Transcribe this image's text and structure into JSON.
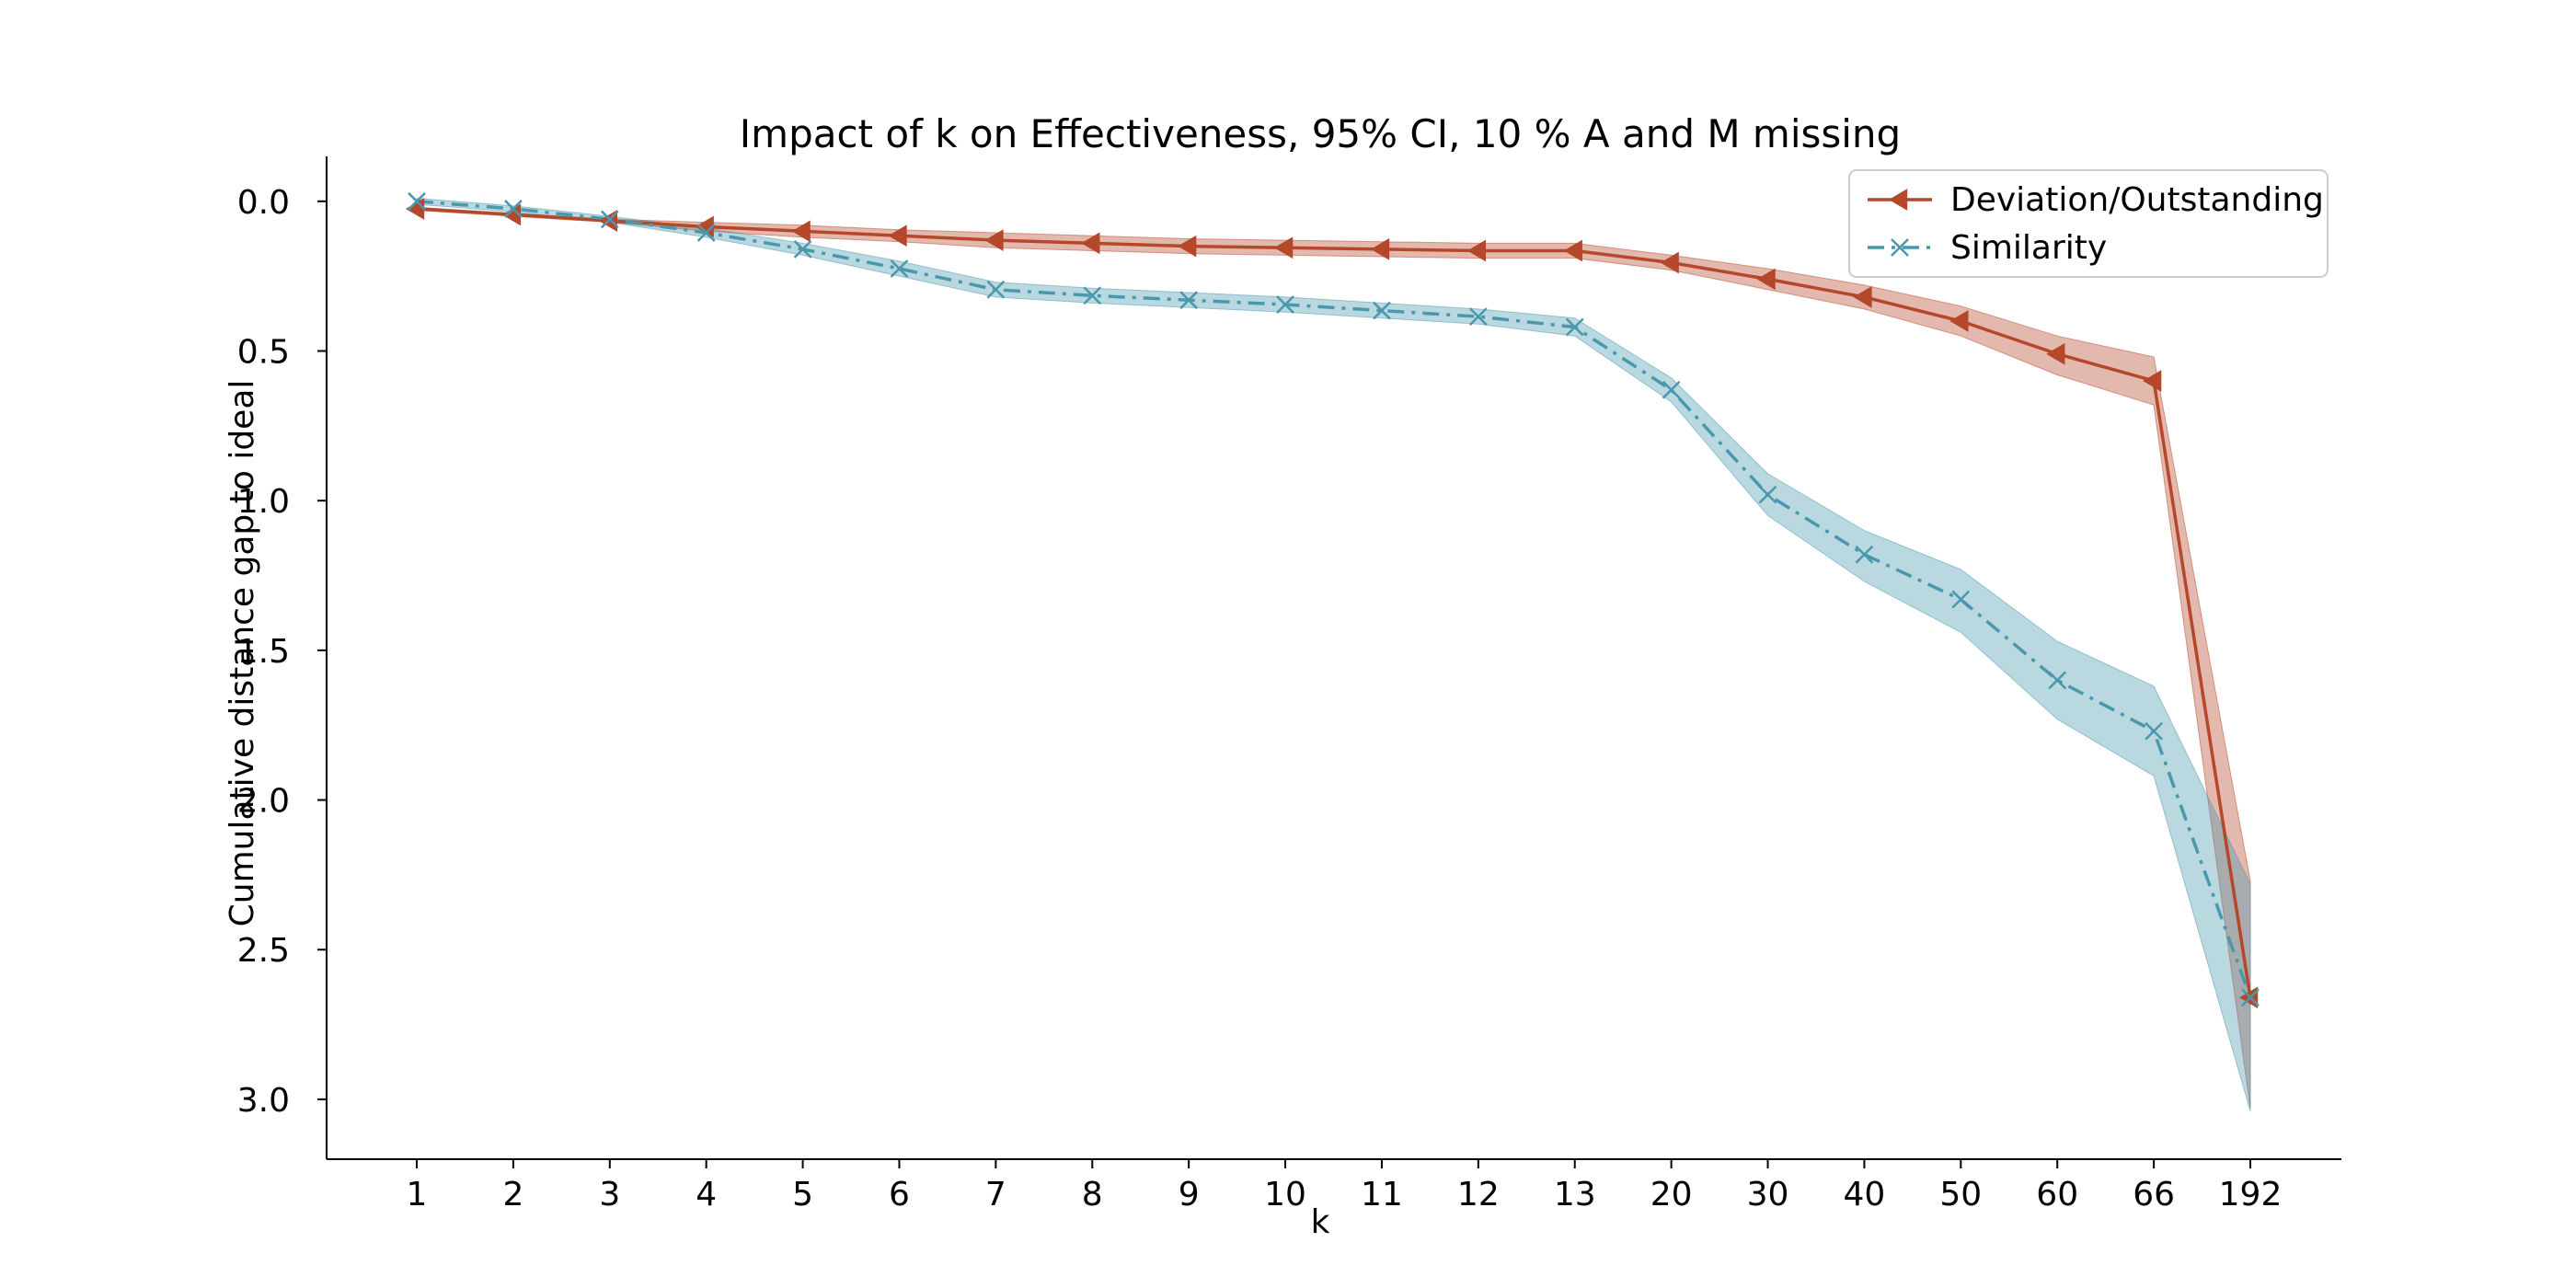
{
  "chart_data": {
    "type": "line",
    "title": "Impact of k on Effectiveness, 95% CI, 10 % A and M missing",
    "xlabel": "k",
    "ylabel": "Cumulative distance gap to ideal",
    "categories": [
      "1",
      "2",
      "3",
      "4",
      "5",
      "6",
      "7",
      "8",
      "9",
      "10",
      "11",
      "12",
      "13",
      "20",
      "30",
      "40",
      "50",
      "60",
      "66",
      "192"
    ],
    "y_axis_inverted": true,
    "ylim": [
      -0.15,
      3.2
    ],
    "yticks": [
      "0.0",
      "0.5",
      "1.0",
      "1.5",
      "2.0",
      "2.5",
      "3.0"
    ],
    "ytick_values": [
      0.0,
      0.5,
      1.0,
      1.5,
      2.0,
      2.5,
      3.0
    ],
    "grid": false,
    "legend_position": "top-right",
    "series": [
      {
        "name": "Deviation/Outstanding",
        "color": "#b5472a",
        "line_style": "solid",
        "marker": "triangle-left",
        "values": [
          0.025,
          0.045,
          0.065,
          0.085,
          0.1,
          0.115,
          0.13,
          0.14,
          0.15,
          0.155,
          0.16,
          0.165,
          0.165,
          0.205,
          0.26,
          0.32,
          0.4,
          0.51,
          0.6,
          2.66
        ],
        "ci_lower": [
          0.02,
          0.04,
          0.06,
          0.07,
          0.08,
          0.095,
          0.105,
          0.115,
          0.125,
          0.13,
          0.135,
          0.14,
          0.14,
          0.18,
          0.225,
          0.28,
          0.35,
          0.45,
          0.52,
          2.27
        ],
        "ci_upper": [
          0.03,
          0.05,
          0.07,
          0.1,
          0.12,
          0.135,
          0.155,
          0.165,
          0.175,
          0.18,
          0.185,
          0.19,
          0.19,
          0.23,
          0.295,
          0.36,
          0.45,
          0.58,
          0.68,
          3.03
        ]
      },
      {
        "name": "Similarity",
        "color": "#4a98ad",
        "line_style": "dashdot",
        "marker": "x",
        "values": [
          0.0,
          0.025,
          0.06,
          0.105,
          0.16,
          0.225,
          0.295,
          0.315,
          0.33,
          0.345,
          0.365,
          0.385,
          0.42,
          0.63,
          0.98,
          1.18,
          1.33,
          1.6,
          1.77,
          2.66
        ],
        "ci_lower": [
          -0.01,
          0.015,
          0.05,
          0.09,
          0.14,
          0.2,
          0.27,
          0.29,
          0.305,
          0.32,
          0.34,
          0.36,
          0.39,
          0.59,
          0.91,
          1.1,
          1.23,
          1.47,
          1.62,
          2.28
        ],
        "ci_upper": [
          0.01,
          0.035,
          0.07,
          0.12,
          0.18,
          0.25,
          0.32,
          0.34,
          0.355,
          0.37,
          0.39,
          0.41,
          0.45,
          0.67,
          1.05,
          1.27,
          1.44,
          1.73,
          1.92,
          3.04
        ]
      }
    ]
  }
}
